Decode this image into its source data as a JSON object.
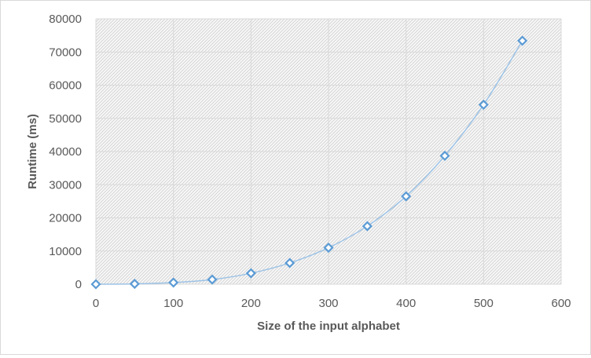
{
  "chart_data": {
    "type": "scatter",
    "title": "",
    "xlabel": "Size of the input alphabet",
    "ylabel": "Runtime (ms)",
    "xlim": [
      0,
      600
    ],
    "ylim": [
      0,
      80000
    ],
    "x_ticks": [
      "0",
      "100",
      "200",
      "300",
      "400",
      "500",
      "600"
    ],
    "y_ticks": [
      "0",
      "10000",
      "20000",
      "30000",
      "40000",
      "50000",
      "60000",
      "70000",
      "80000"
    ],
    "grid": true,
    "legend": "none",
    "marker": "diamond-open",
    "line": "smooth",
    "colors": {
      "series": "#5b9bd5",
      "line": "#9dc3e6",
      "grid": "#d9d9d9",
      "text": "#595959"
    },
    "series": [
      {
        "x": [
          0,
          50,
          100,
          150,
          200,
          250,
          300,
          350,
          400,
          450,
          500,
          550
        ],
        "y": [
          0,
          100,
          500,
          1400,
          3300,
          6400,
          11000,
          17500,
          26500,
          38700,
          54100,
          73400
        ]
      }
    ]
  }
}
